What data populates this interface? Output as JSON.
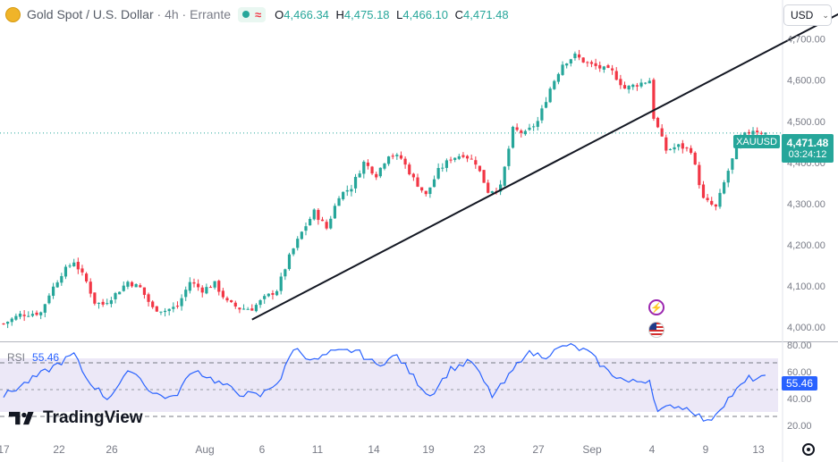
{
  "header": {
    "symbol": "Gold Spot / U.S. Dollar",
    "sep1": " / ",
    "interval": "4h",
    "source": "Errante",
    "open_label": "O",
    "open": "4,466.34",
    "high_label": "H",
    "high": "4,475.18",
    "low_label": "L",
    "low": "4,466.10",
    "close_label": "C",
    "close": "4,471.48"
  },
  "currency_selector": {
    "label": "USD"
  },
  "price_tag": {
    "symbol": "XAUUSD",
    "price": "4,471.48",
    "countdown": "03:24:12"
  },
  "rsi": {
    "label": "RSI",
    "value": "55.46"
  },
  "brand": "TradingView",
  "colors": {
    "up": "#26a69a",
    "down": "#f23645",
    "rsi_line": "#2962ff",
    "rsi_band": "#ece8f7"
  },
  "icons": [
    "coin-icon",
    "market-status-icon",
    "lightning-event-icon",
    "us-flag-event-icon",
    "chevron-down-icon",
    "settings-icon",
    "tradingview-logo-icon"
  ],
  "chart_data": [
    {
      "type": "candlestick",
      "title": "Gold Spot / U.S. Dollar · 4h · Errante",
      "y_ticks": [
        "4,000.00",
        "4,100.00",
        "4,200.00",
        "4,300.00",
        "4,400.00",
        "4,500.00",
        "4,600.00",
        "4,700.00"
      ],
      "y_tick_values": [
        4000,
        4100,
        4200,
        4300,
        4400,
        4500,
        4600,
        4700
      ],
      "ylim": [
        3965,
        4795
      ],
      "x_ticks": [
        "17",
        "22",
        "26",
        "Aug",
        "6",
        "11",
        "14",
        "19",
        "23",
        "27",
        "Sep",
        "4",
        "9",
        "13"
      ],
      "last_price": 4471.48,
      "trendline": {
        "start": [
          60,
          4018
        ],
        "end": [
          211,
          4810
        ]
      },
      "waypoints": [
        [
          0,
          4008
        ],
        [
          4,
          4030
        ],
        [
          9,
          4035
        ],
        [
          11,
          4080
        ],
        [
          14,
          4130
        ],
        [
          17,
          4160
        ],
        [
          20,
          4110
        ],
        [
          22,
          4060
        ],
        [
          24,
          4055
        ],
        [
          27,
          4080
        ],
        [
          30,
          4110
        ],
        [
          33,
          4095
        ],
        [
          36,
          4045
        ],
        [
          39,
          4040
        ],
        [
          42,
          4050
        ],
        [
          45,
          4110
        ],
        [
          48,
          4090
        ],
        [
          51,
          4105
        ],
        [
          54,
          4060
        ],
        [
          57,
          4045
        ],
        [
          60,
          4045
        ],
        [
          63,
          4070
        ],
        [
          66,
          4090
        ],
        [
          69,
          4170
        ],
        [
          72,
          4230
        ],
        [
          75,
          4280
        ],
        [
          78,
          4240
        ],
        [
          81,
          4320
        ],
        [
          84,
          4340
        ],
        [
          87,
          4400
        ],
        [
          90,
          4370
        ],
        [
          93,
          4420
        ],
        [
          96,
          4410
        ],
        [
          99,
          4360
        ],
        [
          102,
          4320
        ],
        [
          105,
          4380
        ],
        [
          108,
          4410
        ],
        [
          111,
          4420
        ],
        [
          114,
          4400
        ],
        [
          117,
          4330
        ],
        [
          120,
          4340
        ],
        [
          123,
          4480
        ],
        [
          126,
          4470
        ],
        [
          129,
          4500
        ],
        [
          132,
          4580
        ],
        [
          135,
          4640
        ],
        [
          138,
          4660
        ],
        [
          141,
          4640
        ],
        [
          144,
          4630
        ],
        [
          147,
          4620
        ],
        [
          150,
          4580
        ],
        [
          153,
          4590
        ],
        [
          156,
          4600
        ],
        [
          157,
          4510
        ],
        [
          160,
          4430
        ],
        [
          163,
          4440
        ],
        [
          166,
          4430
        ],
        [
          169,
          4310
        ],
        [
          172,
          4290
        ],
        [
          175,
          4380
        ],
        [
          178,
          4460
        ],
        [
          181,
          4480
        ],
        [
          184,
          4471
        ]
      ]
    },
    {
      "type": "line",
      "name": "RSI",
      "y_ticks": [
        "80.00",
        "60.00",
        "40.00",
        "20.00"
      ],
      "y_tick_values": [
        80,
        60,
        40,
        20
      ],
      "ylim": [
        16,
        82
      ],
      "bands": [
        70,
        30
      ],
      "last_value": 55.46,
      "waypoints": [
        [
          0,
          42
        ],
        [
          10,
          60
        ],
        [
          17,
          73
        ],
        [
          20,
          55
        ],
        [
          25,
          40
        ],
        [
          31,
          62
        ],
        [
          36,
          44
        ],
        [
          41,
          40
        ],
        [
          46,
          62
        ],
        [
          50,
          55
        ],
        [
          57,
          44
        ],
        [
          62,
          42
        ],
        [
          67,
          55
        ],
        [
          70,
          78
        ],
        [
          75,
          68
        ],
        [
          79,
          74
        ],
        [
          85,
          76
        ],
        [
          90,
          65
        ],
        [
          95,
          72
        ],
        [
          100,
          52
        ],
        [
          103,
          42
        ],
        [
          108,
          62
        ],
        [
          113,
          68
        ],
        [
          118,
          42
        ],
        [
          121,
          52
        ],
        [
          126,
          74
        ],
        [
          131,
          72
        ],
        [
          136,
          80
        ],
        [
          141,
          75
        ],
        [
          146,
          60
        ],
        [
          151,
          52
        ],
        [
          156,
          54
        ],
        [
          158,
          30
        ],
        [
          162,
          35
        ],
        [
          166,
          32
        ],
        [
          170,
          22
        ],
        [
          175,
          40
        ],
        [
          180,
          55
        ],
        [
          184,
          55
        ]
      ]
    }
  ]
}
